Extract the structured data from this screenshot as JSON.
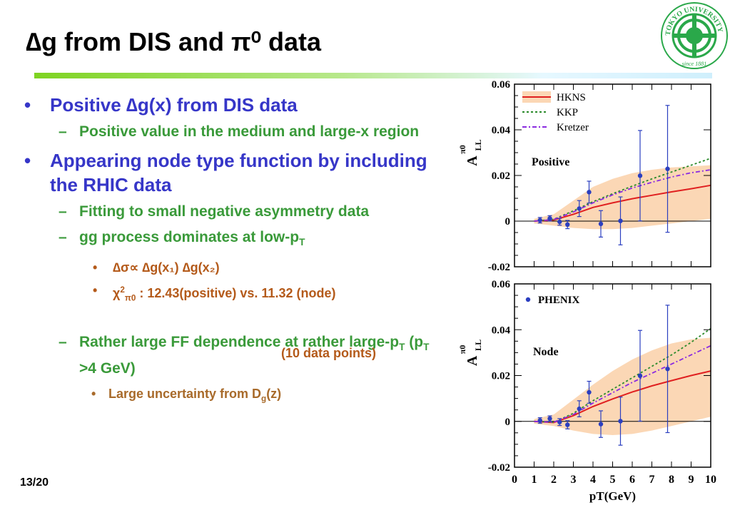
{
  "slide": {
    "title": "∆g from DIS and π⁰ data",
    "page": "13/20",
    "logo_text": "TOKYO UNIVERSITY OF SCIENCE since 1881"
  },
  "bullets": {
    "b1": "Positive ∆g(x) from DIS data",
    "b1_sub1": "Positive value in the medium and large-x region",
    "b2": "Appearing node type function by including the RHIC data",
    "b2_sub1": "Fitting to small negative asymmetry data",
    "b2_sub2_pre": "gg process dominates at low-p",
    "b2_sub2_sub": "T",
    "b2_sub2_item1": "∆σ∝ ∆g(x₁) ∆g(x₂)",
    "b2_sub2_item2_pre": "χ",
    "b2_sub2_item2_sup": "2",
    "b2_sub2_item2_sub": "π0",
    "b2_sub2_item2_post": " : 12.43(positive) vs. 11.32 (node)",
    "b2_sub2_note": "(10 data points)",
    "b2_sub3_a": "Rather large FF dependence at rather large-p",
    "b2_sub3_b": " (p",
    "b2_sub3_c": " >4 GeV)",
    "b2_sub3_item1_pre": "Large uncertainty from D",
    "b2_sub3_item1_sub": "g",
    "b2_sub3_item1_post": "(z)"
  },
  "chart_data": [
    {
      "type": "line",
      "panel": "top",
      "label": "Positive",
      "ylabel": "Aπ⁰ LL",
      "xlabel": "",
      "xlim": [
        0,
        10
      ],
      "ylim": [
        -0.02,
        0.06
      ],
      "yticks": [
        -0.02,
        0,
        0.02,
        0.04,
        0.06
      ],
      "ytick_labels": [
        "-0.02",
        "0",
        "0.02",
        "0.04",
        "0.06"
      ],
      "legend": [
        "HKNS",
        "KKP",
        "Kretzer"
      ],
      "legend_position": "top-left",
      "series": [
        {
          "name": "HKNS",
          "color": "#e02020",
          "style": "solid",
          "x": [
            1,
            2,
            3,
            4,
            5,
            6,
            7,
            8,
            9,
            10
          ],
          "y": [
            0.0,
            0.0005,
            0.003,
            0.006,
            0.008,
            0.0098,
            0.0113,
            0.0128,
            0.0142,
            0.0157
          ]
        },
        {
          "name": "KKP",
          "color": "#2a8a2a",
          "style": "dotted",
          "x": [
            1,
            2,
            3,
            4,
            5,
            6,
            7,
            8,
            9,
            10
          ],
          "y": [
            0.0,
            0.0008,
            0.0045,
            0.0085,
            0.012,
            0.0153,
            0.0185,
            0.0215,
            0.0245,
            0.0275
          ]
        },
        {
          "name": "Kretzer",
          "color": "#8a2ae0",
          "style": "dashdot",
          "x": [
            1,
            2,
            3,
            4,
            5,
            6,
            7,
            8,
            9,
            10
          ],
          "y": [
            0.0,
            0.0007,
            0.004,
            0.008,
            0.0115,
            0.0145,
            0.017,
            0.0193,
            0.0212,
            0.0225
          ]
        }
      ],
      "band": {
        "x": [
          1,
          2,
          3,
          4,
          5,
          6,
          7,
          8,
          9,
          10
        ],
        "lower": [
          -0.001,
          -0.002,
          -0.003,
          -0.0035,
          -0.0035,
          -0.003,
          -0.002,
          -0.001,
          0.0,
          0.001
        ],
        "upper": [
          0.001,
          0.003,
          0.009,
          0.015,
          0.0185,
          0.021,
          0.0225,
          0.0235,
          0.024,
          0.0245
        ],
        "color": "#fbd7b5"
      },
      "points": {
        "name": "PHENIX",
        "x": [
          1.3,
          1.8,
          2.3,
          2.7,
          3.3,
          3.8,
          4.4,
          5.4,
          6.4,
          7.8
        ],
        "y": [
          0.0004,
          0.0012,
          -0.0003,
          -0.0015,
          0.0055,
          0.0127,
          -0.0012,
          0.0001,
          0.0199,
          0.0229
        ],
        "err": [
          0.0012,
          0.0012,
          0.0015,
          0.0018,
          0.0035,
          0.0048,
          0.0058,
          0.0105,
          0.0198,
          0.0278
        ]
      }
    },
    {
      "type": "line",
      "panel": "bottom",
      "label": "Node",
      "ylabel": "Aπ⁰ LL",
      "xlabel": "pT(GeV)",
      "xlim": [
        0,
        10
      ],
      "ylim": [
        -0.02,
        0.06
      ],
      "xticks": [
        0,
        1,
        2,
        3,
        4,
        5,
        6,
        7,
        8,
        9,
        10
      ],
      "xtick_labels": [
        "0",
        "1",
        "2",
        "3",
        "4",
        "5",
        "6",
        "7",
        "8",
        "9",
        "10"
      ],
      "yticks": [
        -0.02,
        0,
        0.02,
        0.04,
        0.06
      ],
      "ytick_labels": [
        "-0.02",
        "0",
        "0.02",
        "0.04",
        "0.06"
      ],
      "legend": [
        "PHENIX"
      ],
      "legend_position": "top-left",
      "series": [
        {
          "name": "HKNS",
          "color": "#e02020",
          "style": "solid",
          "x": [
            1,
            2,
            3,
            4,
            5,
            6,
            7,
            8,
            9,
            10
          ],
          "y": [
            0.0,
            -0.0005,
            0.0025,
            0.0065,
            0.0098,
            0.0128,
            0.0155,
            0.0178,
            0.02,
            0.022
          ]
        },
        {
          "name": "KKP",
          "color": "#2a8a2a",
          "style": "dotted",
          "x": [
            1,
            2,
            3,
            4,
            5,
            6,
            7,
            8,
            9,
            10
          ],
          "y": [
            0.0,
            -0.0004,
            0.0035,
            0.009,
            0.014,
            0.019,
            0.024,
            0.029,
            0.0345,
            0.0405
          ]
        },
        {
          "name": "Kretzer",
          "color": "#8a2ae0",
          "style": "dashdot",
          "x": [
            1,
            2,
            3,
            4,
            5,
            6,
            7,
            8,
            9,
            10
          ],
          "y": [
            0.0,
            -0.0004,
            0.003,
            0.008,
            0.0125,
            0.017,
            0.021,
            0.025,
            0.029,
            0.033
          ]
        }
      ],
      "band": {
        "x": [
          1,
          2,
          3,
          4,
          5,
          6,
          7,
          8,
          9,
          10
        ],
        "lower": [
          -0.001,
          -0.002,
          -0.004,
          -0.0055,
          -0.006,
          -0.0055,
          -0.004,
          -0.002,
          0.0,
          0.002
        ],
        "upper": [
          0.001,
          0.003,
          0.0095,
          0.016,
          0.022,
          0.027,
          0.031,
          0.034,
          0.0358,
          0.0365
        ],
        "color": "#fbd7b5"
      },
      "points": {
        "name": "PHENIX",
        "x": [
          1.3,
          1.8,
          2.3,
          2.7,
          3.3,
          3.8,
          4.4,
          5.4,
          6.4,
          7.8
        ],
        "y": [
          0.0004,
          0.0012,
          -0.0003,
          -0.0015,
          0.0055,
          0.0127,
          -0.0012,
          0.0001,
          0.0199,
          0.0229
        ],
        "err": [
          0.0012,
          0.0012,
          0.0015,
          0.0018,
          0.0035,
          0.0048,
          0.0058,
          0.0105,
          0.0198,
          0.0278
        ]
      }
    }
  ]
}
